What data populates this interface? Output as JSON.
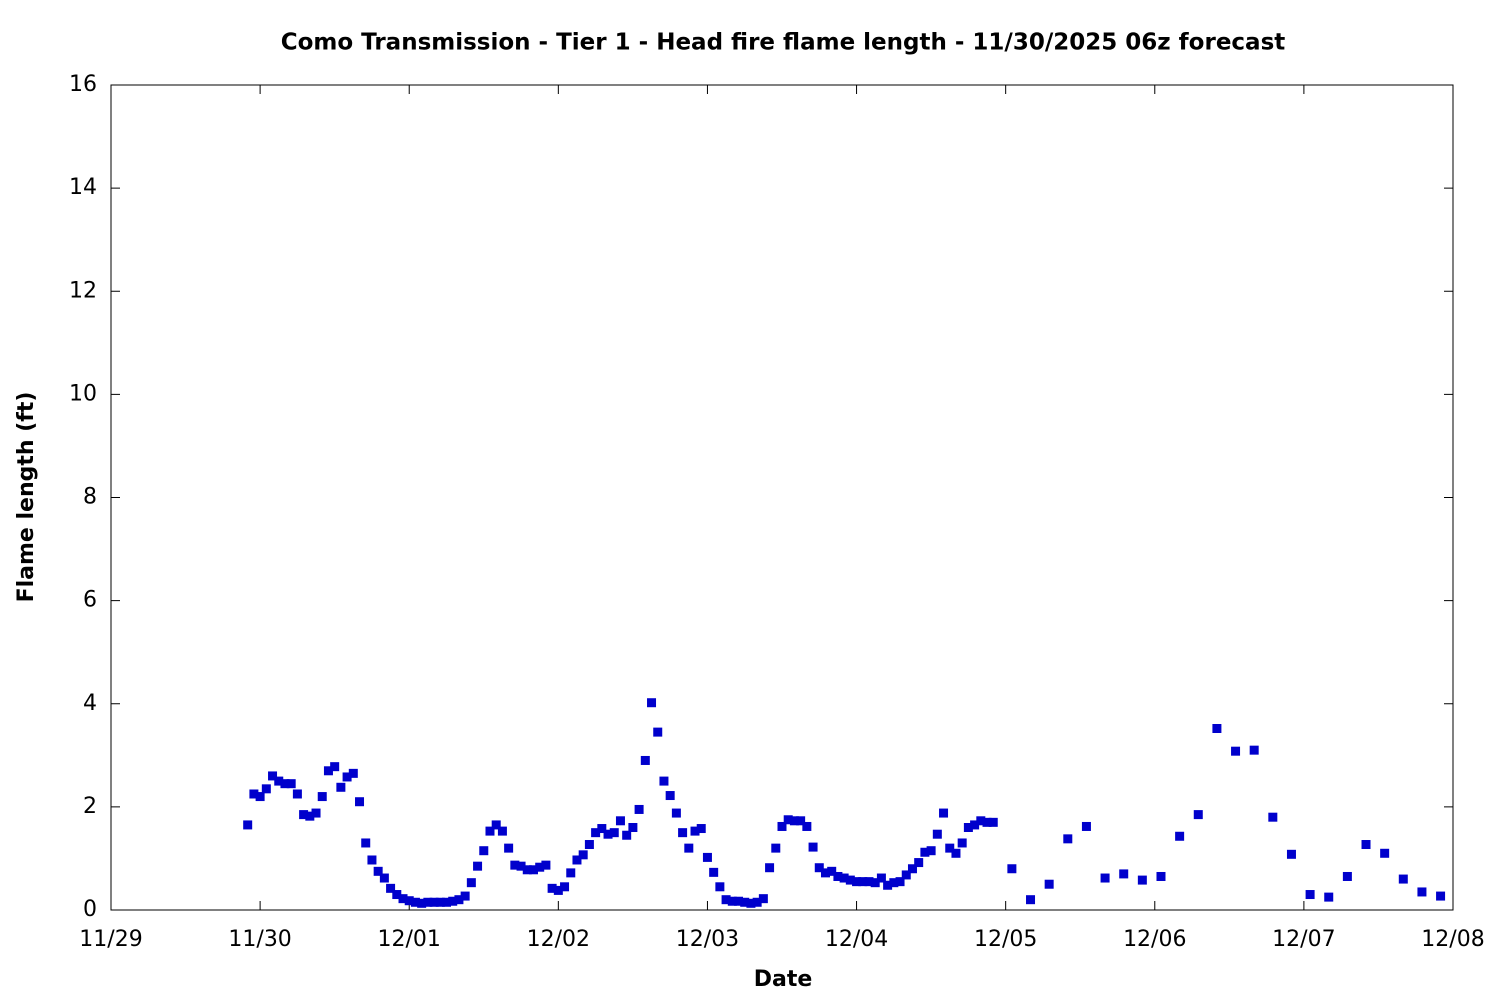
{
  "chart_data": {
    "type": "scatter",
    "title": "Como Transmission - Tier 1 - Head fire flame length - 11/30/2025 06z forecast",
    "xlabel": "Date",
    "ylabel": "Flame length (ft)",
    "color": "#0000cc",
    "x": [
      22,
      23,
      24,
      25,
      26,
      27,
      28,
      29,
      30,
      31,
      32,
      33,
      34,
      35,
      36,
      37,
      38,
      39,
      40,
      41,
      42,
      43,
      44,
      45,
      46,
      47,
      48,
      49,
      50,
      51,
      52,
      53,
      54,
      55,
      56,
      57,
      58,
      59,
      60,
      61,
      62,
      63,
      64,
      65,
      66,
      67,
      68,
      69,
      70,
      71,
      72,
      73,
      74,
      75,
      76,
      77,
      78,
      79,
      80,
      81,
      82,
      83,
      84,
      85,
      86,
      87,
      88,
      89,
      90,
      91,
      92,
      93,
      94,
      95,
      96,
      97,
      98,
      99,
      100,
      101,
      102,
      103,
      104,
      105,
      106,
      107,
      108,
      109,
      110,
      111,
      112,
      113,
      114,
      115,
      116,
      117,
      118,
      119,
      120,
      121,
      122,
      123,
      124,
      125,
      126,
      127,
      128,
      129,
      130,
      131,
      132,
      133,
      134,
      135,
      136,
      137,
      138,
      139,
      140,
      141,
      142,
      145,
      148,
      151,
      154,
      157,
      160,
      163,
      166,
      169,
      172,
      175,
      178,
      181,
      184,
      187,
      190,
      193,
      196,
      199,
      202,
      205,
      208,
      211,
      214
    ],
    "values": [
      1.65,
      2.25,
      2.2,
      2.35,
      2.6,
      2.5,
      2.45,
      2.45,
      2.25,
      1.85,
      1.82,
      1.88,
      2.2,
      2.7,
      2.78,
      2.38,
      2.58,
      2.65,
      2.1,
      1.3,
      0.97,
      0.75,
      0.62,
      0.42,
      0.3,
      0.22,
      0.18,
      0.15,
      0.13,
      0.15,
      0.15,
      0.15,
      0.15,
      0.17,
      0.2,
      0.27,
      0.53,
      0.85,
      1.15,
      1.53,
      1.65,
      1.53,
      1.2,
      0.87,
      0.85,
      0.78,
      0.78,
      0.83,
      0.87,
      0.42,
      0.38,
      0.45,
      0.72,
      0.97,
      1.07,
      1.27,
      1.5,
      1.58,
      1.47,
      1.5,
      1.73,
      1.45,
      1.6,
      1.95,
      2.9,
      4.02,
      3.45,
      2.5,
      2.22,
      1.88,
      1.5,
      1.2,
      1.53,
      1.58,
      1.02,
      0.73,
      0.45,
      0.2,
      0.17,
      0.17,
      0.15,
      0.13,
      0.15,
      0.22,
      0.82,
      1.2,
      1.62,
      1.75,
      1.73,
      1.73,
      1.62,
      1.22,
      0.82,
      0.72,
      0.75,
      0.65,
      0.62,
      0.58,
      0.55,
      0.55,
      0.55,
      0.53,
      0.62,
      0.48,
      0.53,
      0.55,
      0.68,
      0.8,
      0.92,
      1.12,
      1.15,
      1.47,
      1.88,
      1.2,
      1.1,
      1.3,
      1.6,
      1.65,
      1.73,
      1.7,
      1.7,
      0.8,
      0.2,
      0.5,
      1.38,
      1.62,
      0.62,
      0.7,
      0.58,
      0.65,
      1.43,
      1.85,
      3.52,
      3.08,
      3.1,
      1.8,
      1.08,
      0.3,
      0.25,
      0.65,
      1.27,
      1.1,
      0.6,
      0.35,
      0.27
    ],
    "xlim": [
      0,
      216
    ],
    "xticks": [
      {
        "value": 0,
        "label": "11/29"
      },
      {
        "value": 24,
        "label": "11/30"
      },
      {
        "value": 48,
        "label": "12/01"
      },
      {
        "value": 72,
        "label": "12/02"
      },
      {
        "value": 96,
        "label": "12/03"
      },
      {
        "value": 120,
        "label": "12/04"
      },
      {
        "value": 144,
        "label": "12/05"
      },
      {
        "value": 168,
        "label": "12/06"
      },
      {
        "value": 192,
        "label": "12/07"
      },
      {
        "value": 216,
        "label": "12/08"
      }
    ],
    "ylim": [
      0,
      16
    ],
    "yticks": [
      0,
      2,
      4,
      6,
      8,
      10,
      12,
      14,
      16
    ]
  }
}
